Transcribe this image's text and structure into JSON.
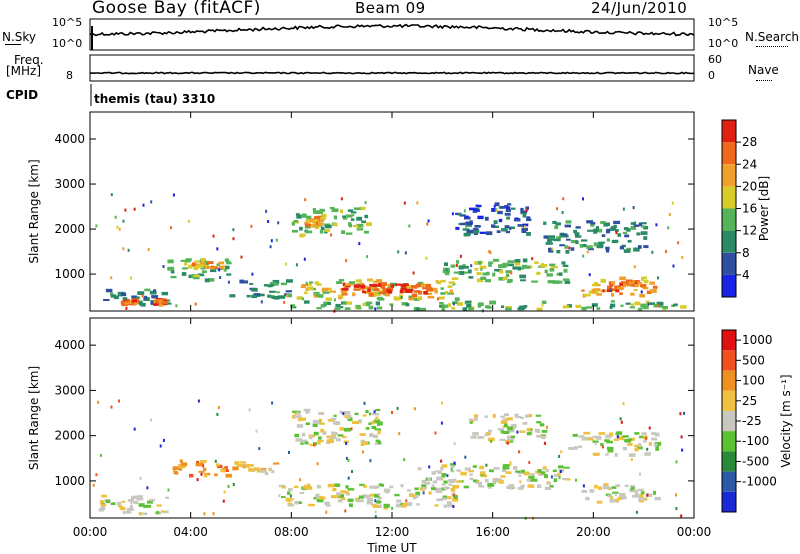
{
  "header": {
    "station": "Goose Bay (fitACF)",
    "beam": "Beam 09",
    "date": "24/Jun/2010"
  },
  "status_panels": {
    "nsky_label": "N.Sky",
    "nsky_ticks": [
      "10^5",
      "10^0"
    ],
    "nsearch_label": "N.Search",
    "nsearch_ticks": [
      "10^5",
      "10^0"
    ],
    "freq_label_line1": "Freq.",
    "freq_label_line2": "[MHz]",
    "freq_ticks": [
      "8"
    ],
    "nave_label": "Nave",
    "nave_ticks": [
      "60",
      "0"
    ],
    "cpid_label": "CPID",
    "cpid_text": "themis (tau) 3310"
  },
  "chart_data": [
    {
      "type": "heatmap",
      "panel": "power",
      "ylabel": "Slant Range [km]",
      "yticks": [
        "1000",
        "2000",
        "3000",
        "4000"
      ],
      "ylim": [
        180,
        4600
      ],
      "xlim": [
        0,
        24
      ],
      "colorbar_label": "Power [dB]",
      "colorbar_ticks": [
        "4",
        "8",
        "12",
        "16",
        "20",
        "24",
        "28"
      ],
      "colorbar_colors": [
        "#1a24e6",
        "#2f4fa0",
        "#2a8a66",
        "#55b35a",
        "#d9cc2a",
        "#f0a02a",
        "#ee6a1a",
        "#e02010"
      ],
      "regions": [
        {
          "t0": 0.3,
          "t1": 3.2,
          "r0": 350,
          "r1": 700,
          "level": 2
        },
        {
          "t0": 1.2,
          "t1": 1.8,
          "r0": 350,
          "r1": 480,
          "level": 6
        },
        {
          "t0": 2.5,
          "t1": 3.0,
          "r0": 350,
          "r1": 470,
          "level": 6
        },
        {
          "t0": 3.0,
          "t1": 5.5,
          "r0": 900,
          "r1": 1400,
          "level": 3
        },
        {
          "t0": 4.0,
          "t1": 5.2,
          "r0": 1150,
          "r1": 1300,
          "level": 5
        },
        {
          "t0": 5.5,
          "t1": 7.8,
          "r0": 500,
          "r1": 900,
          "level": 2
        },
        {
          "t0": 8.0,
          "t1": 11.0,
          "r0": 1900,
          "r1": 2500,
          "level": 3
        },
        {
          "t0": 8.5,
          "t1": 9.2,
          "r0": 2100,
          "r1": 2300,
          "level": 5
        },
        {
          "t0": 8.2,
          "t1": 14.5,
          "r0": 450,
          "r1": 900,
          "level": 4
        },
        {
          "t0": 9.5,
          "t1": 13.5,
          "r0": 550,
          "r1": 820,
          "level": 6
        },
        {
          "t0": 10.5,
          "t1": 12.8,
          "r0": 620,
          "r1": 800,
          "level": 7
        },
        {
          "t0": 14.0,
          "t1": 19.0,
          "r0": 850,
          "r1": 1350,
          "level": 3
        },
        {
          "t0": 14.5,
          "t1": 17.5,
          "r0": 1900,
          "r1": 2600,
          "level": 1
        },
        {
          "t0": 18.0,
          "t1": 22.0,
          "r0": 1500,
          "r1": 2200,
          "level": 2
        },
        {
          "t0": 19.5,
          "t1": 22.5,
          "r0": 550,
          "r1": 950,
          "level": 5
        },
        {
          "t0": 20.5,
          "t1": 22.0,
          "r0": 650,
          "r1": 850,
          "level": 6
        },
        {
          "t0": 7.8,
          "t1": 23.5,
          "r0": 250,
          "r1": 420,
          "level": 3
        }
      ]
    },
    {
      "type": "heatmap",
      "panel": "velocity",
      "ylabel": "Slant Range [km]",
      "yticks": [
        "1000",
        "2000",
        "3000",
        "4000"
      ],
      "ylim": [
        180,
        4600
      ],
      "xlim": [
        0,
        24
      ],
      "xlabel": "Time UT",
      "xticks": [
        "00:00",
        "04:00",
        "08:00",
        "12:00",
        "16:00",
        "20:00",
        "00:00"
      ],
      "colorbar_label": "Velocity [m s⁻¹]",
      "colorbar_ticks": [
        "1000",
        "500",
        "100",
        "25",
        "-25",
        "-100",
        "-500",
        "-1000"
      ],
      "colorbar_colors": [
        "#1a2ad6",
        "#2a5aa8",
        "#2a8a3a",
        "#5ac232",
        "#c8c8c0",
        "#f0c040",
        "#f09020",
        "#f05020",
        "#e01010"
      ],
      "regions": [
        {
          "t0": 0.3,
          "t1": 3.0,
          "r0": 300,
          "r1": 700,
          "level": 4
        },
        {
          "t0": 3.2,
          "t1": 5.4,
          "r0": 1150,
          "r1": 1500,
          "level": 6
        },
        {
          "t0": 5.5,
          "t1": 7.5,
          "r0": 1200,
          "r1": 1450,
          "level": 5
        },
        {
          "t0": 7.5,
          "t1": 14.5,
          "r0": 450,
          "r1": 950,
          "level": 4
        },
        {
          "t0": 8.0,
          "t1": 11.5,
          "r0": 1800,
          "r1": 2600,
          "level": 4
        },
        {
          "t0": 13.0,
          "t1": 19.0,
          "r0": 850,
          "r1": 1400,
          "level": 4
        },
        {
          "t0": 15.0,
          "t1": 18.0,
          "r0": 1900,
          "r1": 2500,
          "level": 4
        },
        {
          "t0": 19.5,
          "t1": 22.5,
          "r0": 550,
          "r1": 950,
          "level": 4
        },
        {
          "t0": 19.0,
          "t1": 22.5,
          "r0": 1600,
          "r1": 2100,
          "level": 4
        }
      ]
    }
  ]
}
